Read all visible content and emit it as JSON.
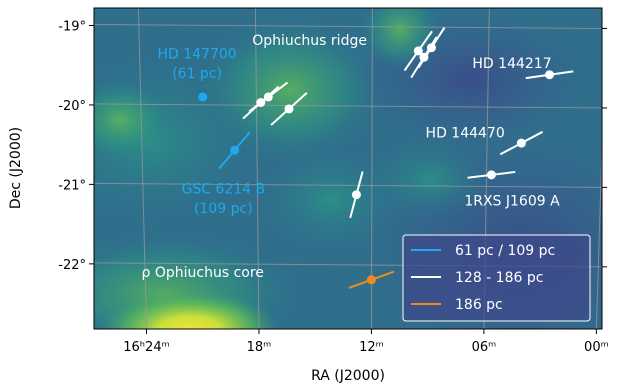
{
  "chart_data": {
    "type": "scatter",
    "xlabel": "RA (J2000)",
    "ylabel": "Dec (J2000)",
    "x_ticks": [
      {
        "value": 24,
        "label": "16ʰ24ᵐ"
      },
      {
        "value": 18,
        "label": "18ᵐ"
      },
      {
        "value": 12,
        "label": "12ᵐ"
      },
      {
        "value": 6,
        "label": "06ᵐ"
      },
      {
        "value": 0,
        "label": "00ᵐ"
      }
    ],
    "y_ticks": [
      {
        "value": -19,
        "label": "-19°"
      },
      {
        "value": -20,
        "label": "-20°"
      },
      {
        "value": -21,
        "label": "-21°"
      },
      {
        "value": -22,
        "label": "-22°"
      }
    ],
    "xlim": [
      26.8,
      -0.3
    ],
    "ylim": [
      -22.82,
      -18.78
    ],
    "grid": true,
    "legend_position": "lower-right",
    "colors": {
      "near": "#1ea8f0",
      "mid": "#ffffff",
      "far": "#f08c1e"
    },
    "series": [
      {
        "name": "61 pc / 109 pc",
        "color": "#1ea8f0",
        "points": [
          {
            "x": 21.0,
            "y": -19.9,
            "angle": null
          },
          {
            "x": 19.3,
            "y": -20.57,
            "angle": 50
          }
        ]
      },
      {
        "name": "128 - 186 pc",
        "color": "#ffffff",
        "points": [
          {
            "x": 17.9,
            "y": -19.97,
            "angle": 42
          },
          {
            "x": 17.5,
            "y": -19.9,
            "angle": 37
          },
          {
            "x": 16.4,
            "y": -20.05,
            "angle": 42
          },
          {
            "x": 12.8,
            "y": -21.13,
            "angle": 75
          },
          {
            "x": 9.5,
            "y": -19.32,
            "angle": 55
          },
          {
            "x": 9.2,
            "y": -19.4,
            "angle": 58
          },
          {
            "x": 8.8,
            "y": -19.28,
            "angle": 57
          },
          {
            "x": 5.6,
            "y": -20.88,
            "angle": 7
          },
          {
            "x": 4.0,
            "y": -20.48,
            "angle": 28
          },
          {
            "x": 2.5,
            "y": -19.62,
            "angle": 8
          }
        ]
      },
      {
        "name": "186 pc",
        "color": "#f08c1e",
        "points": [
          {
            "x": 12.0,
            "y": -22.2,
            "angle": 20
          }
        ]
      }
    ],
    "annotations": [
      {
        "text": "HD 147700",
        "x": 21.3,
        "y": -19.35,
        "color": "#1ea8f0"
      },
      {
        "text": "(61 pc)",
        "x": 21.3,
        "y": -19.6,
        "color": "#1ea8f0"
      },
      {
        "text": "GSC 6214 B",
        "x": 19.9,
        "y": -21.05,
        "color": "#1ea8f0"
      },
      {
        "text": "(109 pc)",
        "x": 19.9,
        "y": -21.3,
        "color": "#1ea8f0"
      },
      {
        "text": "Ophiuchus ridge",
        "x": 15.3,
        "y": -19.18,
        "color": "#ffffff"
      },
      {
        "text": "HD 144217",
        "x": 4.5,
        "y": -19.47,
        "color": "#ffffff"
      },
      {
        "text": "HD 144470",
        "x": 7.0,
        "y": -20.35,
        "color": "#ffffff"
      },
      {
        "text": "1RXS J1609 A",
        "x": 4.5,
        "y": -21.2,
        "color": "#ffffff"
      },
      {
        "text": "ρ Ophiuchus core",
        "x": 21.0,
        "y": -22.1,
        "color": "#ffffff"
      }
    ]
  }
}
